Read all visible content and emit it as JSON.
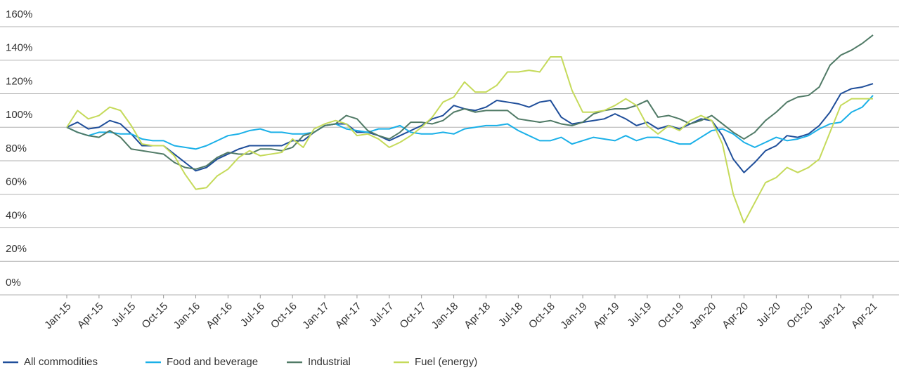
{
  "chart_data": {
    "type": "line",
    "categories": [
      "Jan-15",
      null,
      null,
      "Apr-15",
      null,
      null,
      "Jul-15",
      null,
      null,
      "Oct-15",
      null,
      null,
      "Jan-16",
      null,
      null,
      "Apr-16",
      null,
      null,
      "Jul-16",
      null,
      null,
      "Oct-16",
      null,
      null,
      "Jan-17",
      null,
      null,
      "Apr-17",
      null,
      null,
      "Jul-17",
      null,
      null,
      "Oct-17",
      null,
      null,
      "Jan-18",
      null,
      null,
      "Apr-18",
      null,
      null,
      "Jul-18",
      null,
      null,
      "Oct-18",
      null,
      null,
      "Jan-19",
      null,
      null,
      "Apr-19",
      null,
      null,
      "Jul-19",
      null,
      null,
      "Oct-19",
      null,
      null,
      "Jan-20",
      null,
      null,
      "Apr-20",
      null,
      null,
      "Jul-20",
      null,
      null,
      "Oct-20",
      null,
      null,
      "Jan-21",
      null,
      null,
      "Apr-21"
    ],
    "series": [
      {
        "name": "All commodities",
        "color": "#1f4e9a",
        "values": [
          100,
          103,
          99,
          100,
          104,
          102,
          96,
          89,
          89,
          89,
          84,
          79,
          74,
          76,
          81,
          84,
          87,
          89,
          89,
          89,
          89,
          92,
          92,
          97,
          101,
          102,
          102,
          97,
          97,
          95,
          92,
          95,
          98,
          101,
          105,
          107,
          113,
          111,
          110,
          112,
          116,
          115,
          114,
          112,
          115,
          116,
          106,
          102,
          103,
          104,
          105,
          108,
          105,
          101,
          103,
          99,
          101,
          99,
          102,
          105,
          104,
          95,
          81,
          73,
          79,
          86,
          89,
          95,
          94,
          96,
          101,
          109,
          120,
          123,
          124,
          126
        ]
      },
      {
        "name": "Food and beverage",
        "color": "#1ab0e8",
        "values": [
          100,
          97,
          95,
          97,
          97,
          96,
          96,
          93,
          92,
          92,
          89,
          88,
          87,
          89,
          92,
          95,
          96,
          98,
          99,
          97,
          97,
          96,
          96,
          97,
          101,
          102,
          99,
          98,
          97,
          99,
          99,
          101,
          97,
          96,
          96,
          97,
          96,
          99,
          100,
          101,
          101,
          102,
          98,
          95,
          92,
          92,
          94,
          90,
          92,
          94,
          93,
          92,
          95,
          92,
          94,
          94,
          92,
          90,
          90,
          94,
          98,
          99,
          96,
          91,
          88,
          91,
          94,
          92,
          93,
          95,
          99,
          102,
          103,
          109,
          112,
          119
        ]
      },
      {
        "name": "Industrial",
        "color": "#507a66",
        "values": [
          100,
          97,
          95,
          94,
          98,
          94,
          87,
          86,
          85,
          84,
          79,
          76,
          75,
          77,
          82,
          85,
          84,
          84,
          87,
          87,
          86,
          88,
          95,
          97,
          101,
          102,
          107,
          105,
          98,
          95,
          93,
          97,
          103,
          103,
          102,
          104,
          109,
          111,
          109,
          110,
          110,
          110,
          105,
          104,
          103,
          104,
          102,
          101,
          103,
          108,
          110,
          111,
          111,
          113,
          116,
          106,
          107,
          105,
          102,
          104,
          107,
          102,
          97,
          93,
          97,
          104,
          109,
          115,
          118,
          119,
          124,
          137,
          143,
          146,
          150,
          155
        ]
      },
      {
        "name": "Fuel (energy)",
        "color": "#c5da5a",
        "values": [
          100,
          110,
          105,
          107,
          112,
          110,
          101,
          90,
          89,
          89,
          83,
          72,
          63,
          64,
          71,
          75,
          82,
          86,
          83,
          84,
          85,
          93,
          88,
          99,
          102,
          104,
          102,
          95,
          96,
          93,
          88,
          91,
          95,
          100,
          106,
          115,
          118,
          127,
          121,
          121,
          125,
          133,
          133,
          134,
          133,
          142,
          142,
          122,
          109,
          109,
          110,
          113,
          117,
          113,
          101,
          96,
          101,
          98,
          104,
          107,
          104,
          90,
          60,
          43,
          55,
          67,
          70,
          76,
          73,
          76,
          81,
          97,
          113,
          117,
          117,
          117
        ]
      }
    ],
    "ylim": [
      0,
      160
    ],
    "yticks": [
      {
        "value": 0,
        "label": "0%"
      },
      {
        "value": 20,
        "label": "20%"
      },
      {
        "value": 40,
        "label": "40%"
      },
      {
        "value": 60,
        "label": "60%"
      },
      {
        "value": 80,
        "label": "80%"
      },
      {
        "value": 100,
        "label": "100%"
      },
      {
        "value": 120,
        "label": "120%"
      },
      {
        "value": 140,
        "label": "140%"
      },
      {
        "value": 160,
        "label": "160%"
      }
    ],
    "grid": true
  }
}
